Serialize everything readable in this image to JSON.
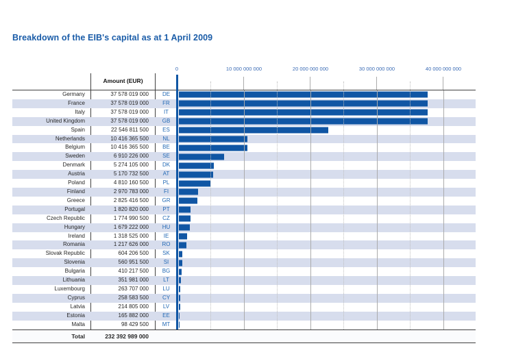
{
  "title": "Breakdown of the EIB's capital as at 1 April 2009",
  "table": {
    "amount_header": "Amount (EUR)",
    "total_label": "Total",
    "total_amount": "232 392 989 000"
  },
  "colors": {
    "bar": "#1056A4",
    "rowAlt": "#D7DDED",
    "title": "#1A5CA8",
    "axisText": "#3A6BB5",
    "code": "#2369B5"
  },
  "chart_data": {
    "type": "bar",
    "orientation": "horizontal",
    "title": "Breakdown of the EIB's capital as at 1 April 2009",
    "categories": [
      "Germany",
      "France",
      "Italy",
      "United Kingdom",
      "Spain",
      "Netherlands",
      "Belgium",
      "Sweden",
      "Denmark",
      "Austria",
      "Poland",
      "Finland",
      "Greece",
      "Portugal",
      "Czech Republic",
      "Hungary",
      "Ireland",
      "Romania",
      "Slovak Republic",
      "Slovenia",
      "Bulgaria",
      "Lithuania",
      "Luxembourg",
      "Cyprus",
      "Latvia",
      "Estonia",
      "Malta"
    ],
    "codes": [
      "DE",
      "FR",
      "IT",
      "GB",
      "ES",
      "NL",
      "BE",
      "SE",
      "DK",
      "AT",
      "PL",
      "FI",
      "GR",
      "PT",
      "CZ",
      "HU",
      "IE",
      "RO",
      "SK",
      "SI",
      "BG",
      "LT",
      "LU",
      "CY",
      "LV",
      "EE",
      "MT"
    ],
    "values": [
      37578019000,
      37578019000,
      37578019000,
      37578019000,
      22546811500,
      10416365500,
      10416365500,
      6910226000,
      5274105000,
      5170732500,
      4810160500,
      2970783000,
      2825416500,
      1820820000,
      1774990500,
      1679222000,
      1318525000,
      1217626000,
      604206500,
      560951500,
      410217500,
      351981000,
      263707000,
      258583500,
      214805000,
      165882000,
      98429500
    ],
    "value_labels": [
      "37 578 019 000",
      "37 578 019 000",
      "37 578 019 000",
      "37 578 019 000",
      "22 546 811 500",
      "10 416 365 500",
      "10 416 365 500",
      "6 910 226 000",
      "5 274 105 000",
      "5 170 732 500",
      "4 810 160 500",
      "2 970 783 000",
      "2 825 416 500",
      "1 820 820 000",
      "1 774 990 500",
      "1 679 222 000",
      "1 318 525 000",
      "1 217 626 000",
      "604 206 500",
      "560 951 500",
      "410 217 500",
      "351 981 000",
      "263 707 000",
      "258 583 500",
      "214 805 000",
      "165 882 000",
      "98 429 500"
    ],
    "total": 232392989000,
    "xlabel": "",
    "ylabel": "",
    "xlim": [
      0,
      45000000000
    ],
    "xticks": [
      0,
      10000000000,
      20000000000,
      30000000000,
      40000000000
    ],
    "xtick_labels": [
      "0",
      "10 000 000 000",
      "20 000 000 000",
      "30 000 000 000",
      "40 000 000 000"
    ],
    "grid": "on",
    "minor_grid_interval": 5000000000,
    "legend": "none"
  }
}
